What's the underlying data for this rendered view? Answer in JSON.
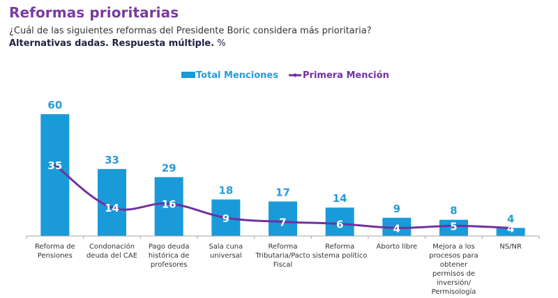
{
  "header": {
    "title": "Reformas prioritarias",
    "question": "¿Cuál de las siguientes reformas del Presidente Boric considera más prioritaria?",
    "note_bold": "Alternativas dadas. Respuesta múltiple.",
    "note_unit": " %"
  },
  "colors": {
    "title": "#7b3aa0",
    "bar": "#1a9ad9",
    "bar_label": "#2a9bd6",
    "line": "#7030a0",
    "axis": "#a6a6a6"
  },
  "chart_data": {
    "type": "bar",
    "title": "Reformas prioritarias",
    "xlabel": "",
    "ylabel": "%",
    "ylim": [
      0,
      60
    ],
    "grid": false,
    "legend_position": "top-center",
    "categories": [
      "Reforma de Pensiones",
      "Condonación deuda del CAE",
      "Pago deuda histórica de profesores",
      "Sala cuna universal",
      "Reforma Tributaria/Pacto Fiscal",
      "Reforma sistema político",
      "Aborto libre",
      "Mejora a los procesos para obtener permisos de inversión/ Permisología",
      "NS/NR"
    ],
    "category_lines": [
      [
        "Reforma de",
        "Pensiones"
      ],
      [
        "Condonación",
        "deuda del CAE"
      ],
      [
        "Pago deuda",
        "histórica de",
        "profesores"
      ],
      [
        "Sala cuna",
        "universal"
      ],
      [
        "Reforma",
        "Tributaria/Pacto",
        "Fiscal"
      ],
      [
        "Reforma",
        "sistema político"
      ],
      [
        "Aborto libre"
      ],
      [
        "Mejora a los",
        "procesos para",
        "obtener",
        "permisos de",
        "inversión/",
        "Permisología"
      ],
      [
        "NS/NR"
      ]
    ],
    "series": [
      {
        "name": "Total Menciones",
        "type": "bar",
        "values": [
          60,
          33,
          29,
          18,
          17,
          14,
          9,
          8,
          4
        ]
      },
      {
        "name": "Primera Mención",
        "type": "line",
        "values": [
          35,
          14,
          16,
          9,
          7,
          6,
          4,
          5,
          4
        ]
      }
    ]
  }
}
